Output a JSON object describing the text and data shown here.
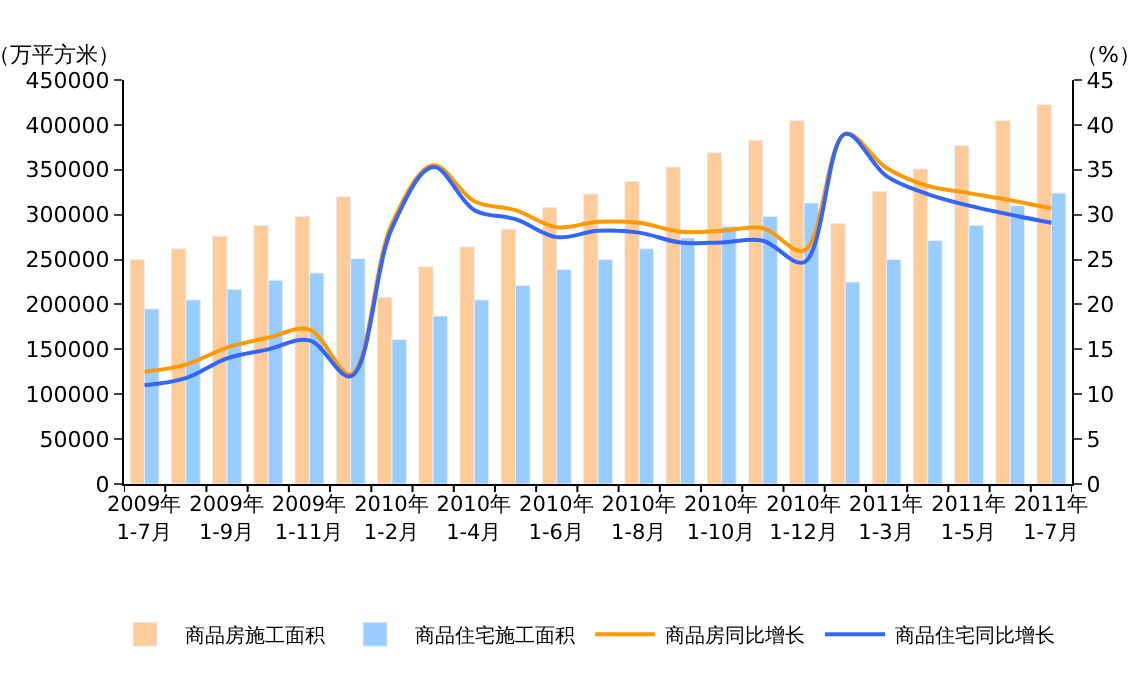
{
  "chart_data": {
    "type": "bar",
    "ylabel": "（万平方米）",
    "y2label": "（%）",
    "categories": [
      "2009年\n1-7月",
      null,
      "2009年\n1-9月",
      null,
      "2009年\n1-11月",
      null,
      "2010年\n1-2月",
      null,
      "2010年\n1-4月",
      null,
      "2010年\n1-6月",
      null,
      "2010年\n1-8月",
      null,
      "2010年\n1-10月",
      null,
      "2010年\n1-12月",
      null,
      "2011年\n1-3月",
      null,
      "2011年\n1-5月",
      null,
      "2011年\n1-7月"
    ],
    "series": [
      {
        "name": "商品房施工面积",
        "color": "#ffcc99",
        "values": [
          250000,
          262000,
          276000,
          288000,
          298000,
          320000,
          208000,
          242000,
          264000,
          284000,
          308000,
          323000,
          337000,
          353000,
          369000,
          383000,
          405000,
          290000,
          326000,
          351000,
          377000,
          405000,
          423000
        ]
      },
      {
        "name": "商品住宅施工面积",
        "color": "#99ccff",
        "values": [
          195000,
          205000,
          217000,
          227000,
          235000,
          251000,
          161000,
          187000,
          205000,
          221000,
          239000,
          250000,
          262000,
          274000,
          287000,
          298000,
          313000,
          225000,
          250000,
          271000,
          288000,
          310000,
          324000
        ]
      },
      {
        "name": "商品房同比增长",
        "type": "line",
        "axis": "y2",
        "color": "#ff9900",
        "values": [
          12.5,
          13.3,
          15.2,
          16.3,
          17.2,
          12.2,
          29.0,
          35.5,
          31.5,
          30.5,
          28.6,
          29.2,
          29.1,
          28.1,
          28.2,
          28.5,
          26.0,
          39.0,
          35.2,
          33.2,
          32.4,
          31.6,
          30.7
        ]
      },
      {
        "name": "商品住宅同比增长",
        "type": "line",
        "axis": "y2",
        "color": "#3366ff",
        "values": [
          11.0,
          11.8,
          14.0,
          15.0,
          16.0,
          12.0,
          28.5,
          35.3,
          30.5,
          29.5,
          27.5,
          28.2,
          28.0,
          26.9,
          26.9,
          27.1,
          24.7,
          39.0,
          34.3,
          32.3,
          31.0,
          30.0,
          29.1
        ]
      }
    ],
    "ylim": [
      0,
      450000
    ],
    "yticks": [
      0,
      50000,
      100000,
      150000,
      200000,
      250000,
      300000,
      350000,
      400000,
      450000
    ],
    "y2lim": [
      0,
      45
    ],
    "y2ticks": [
      0,
      5,
      10,
      15,
      20,
      25,
      30,
      35,
      40,
      45
    ],
    "legend": "bottom",
    "marker": "none",
    "line_style": "solid"
  }
}
